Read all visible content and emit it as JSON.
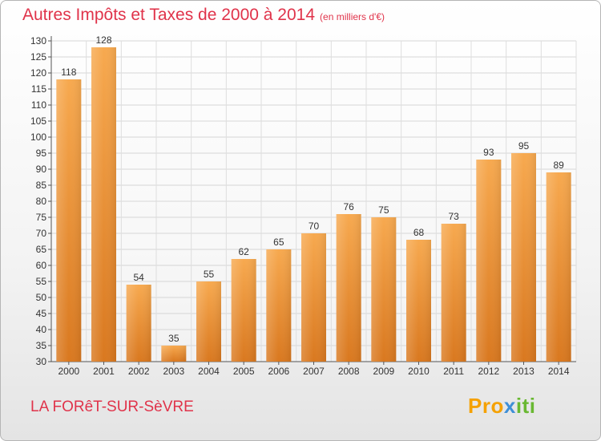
{
  "header": {
    "title": "Autres Impôts et Taxes de 2000 à 2014",
    "subtitle": "(en milliers d'€)"
  },
  "footer": {
    "commune": "LA FORêT-SUR-SèVRE",
    "logo_a": "Pro",
    "logo_b": "x",
    "logo_c": "iti"
  },
  "colors": {
    "bar_light": "#f7a94f",
    "bar_dark": "#d9781f",
    "title": "#e0334a"
  },
  "chart_data": {
    "type": "bar",
    "categories": [
      "2000",
      "2001",
      "2002",
      "2003",
      "2004",
      "2005",
      "2006",
      "2007",
      "2008",
      "2009",
      "2010",
      "2011",
      "2012",
      "2013",
      "2014"
    ],
    "values": [
      118,
      128,
      54,
      35,
      55,
      62,
      65,
      70,
      76,
      75,
      68,
      73,
      93,
      95,
      89
    ],
    "ylim": [
      30,
      130
    ],
    "yticks": [
      30,
      35,
      40,
      45,
      50,
      55,
      60,
      65,
      70,
      75,
      80,
      85,
      90,
      95,
      100,
      105,
      110,
      115,
      120,
      125,
      130
    ],
    "grid": true,
    "legend": "none",
    "data_labels": true
  }
}
